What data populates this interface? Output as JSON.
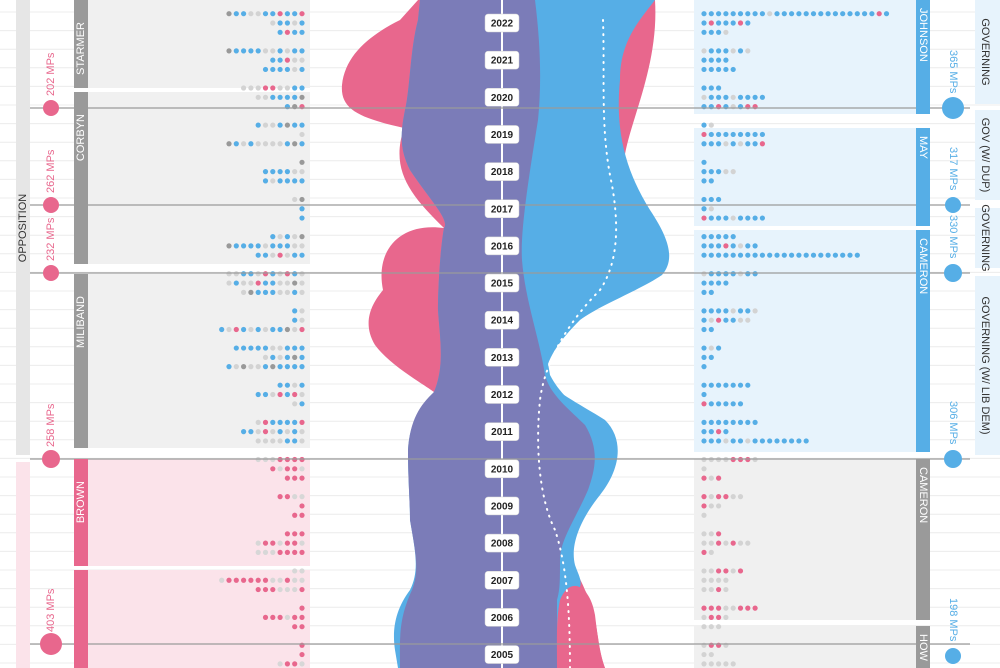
{
  "chart_data": {
    "type": "area",
    "colors": {
      "labour": "#e8678d",
      "conservative": "#56aee6",
      "overlap": "#7b7cb8",
      "gray": "#9a9a9a",
      "lightblue": "#e7f3fc",
      "lightpink": "#fbe3ea",
      "lightgray": "#f0f0f0"
    },
    "years": [
      "2022",
      "2021",
      "2020",
      "2019",
      "2018",
      "2017",
      "2016",
      "2015",
      "2014",
      "2013",
      "2012",
      "2011",
      "2010",
      "2009",
      "2008",
      "2007",
      "2006",
      "2005"
    ],
    "left_leaders": [
      {
        "name": "STARMER",
        "color": "gray",
        "y0": 0,
        "y1": 88
      },
      {
        "name": "CORBYN",
        "color": "gray",
        "y0": 92,
        "y1": 264
      },
      {
        "name": "MILIBAND",
        "color": "gray",
        "y0": 274,
        "y1": 448
      },
      {
        "name": "BROWN",
        "color": "pink",
        "y0": 459,
        "y1": 566
      },
      {
        "name": "",
        "color": "pink",
        "y0": 570,
        "y1": 668
      }
    ],
    "right_leaders": [
      {
        "name": "JOHNSON",
        "color": "blue",
        "y0": 0,
        "y1": 114
      },
      {
        "name": "MAY",
        "color": "blue",
        "y0": 128,
        "y1": 226
      },
      {
        "name": "CAMERON",
        "color": "blue",
        "y0": 230,
        "y1": 452
      },
      {
        "name": "CAMERON",
        "color": "gray",
        "y0": 459,
        "y1": 620
      },
      {
        "name": "HOW",
        "color": "gray",
        "y0": 626,
        "y1": 668
      }
    ],
    "left_mps": [
      {
        "label": "202 MPs",
        "y": 108,
        "r": 8
      },
      {
        "label": "262 MPs",
        "y": 205,
        "r": 8
      },
      {
        "label": "232 MPs",
        "y": 273,
        "r": 8
      },
      {
        "label": "258 MPs",
        "y": 459,
        "r": 9
      },
      {
        "label": "403 MPs",
        "y": 644,
        "r": 11
      }
    ],
    "right_mps": [
      {
        "label": "365 MPs",
        "y": 108,
        "r": 11
      },
      {
        "label": "317 MPs",
        "y": 205,
        "r": 8
      },
      {
        "label": "330 MPs",
        "y": 273,
        "r": 9
      },
      {
        "label": "306 MPs",
        "y": 459,
        "r": 9
      },
      {
        "label": "198 MPs",
        "y": 656,
        "r": 8
      }
    ],
    "left_status": "OPPOSITION",
    "right_status": [
      {
        "label": "GOVERNING",
        "y0": 0,
        "y1": 104
      },
      {
        "label": "GOV (W/ DUP)",
        "y0": 110,
        "y1": 200
      },
      {
        "label": "GOVERNING",
        "y0": 208,
        "y1": 268
      },
      {
        "label": "GOVERNING (W/ LIB DEM)",
        "y0": 276,
        "y1": 455
      }
    ]
  }
}
